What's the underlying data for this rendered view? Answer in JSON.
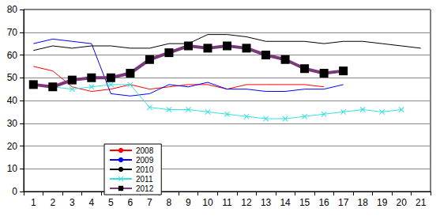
{
  "chart_data": {
    "type": "line",
    "categories": [
      "1",
      "2",
      "3",
      "4",
      "5",
      "6",
      "7",
      "8",
      "9",
      "10",
      "11",
      "12",
      "13",
      "14",
      "15",
      "16",
      "17",
      "18",
      "19",
      "20",
      "21"
    ],
    "ylim": [
      0,
      80
    ],
    "yticks": [
      0,
      10,
      20,
      30,
      40,
      50,
      60,
      70,
      80
    ],
    "grid": true,
    "legend": "lower left",
    "series": [
      {
        "name": "2008",
        "color": "#ff0000",
        "marker": "none",
        "line_style": "thin",
        "values": [
          55,
          53,
          46,
          44,
          45,
          47,
          45,
          46,
          47,
          47,
          45,
          47,
          47,
          47,
          47,
          46,
          null,
          null,
          null,
          null,
          null
        ]
      },
      {
        "name": "2009",
        "color": "#0000ff",
        "marker": "none",
        "line_style": "thin",
        "values": [
          65,
          67,
          66,
          65,
          43,
          42,
          43,
          47,
          46,
          48,
          45,
          45,
          44,
          44,
          45,
          45,
          47,
          null,
          null,
          null,
          null
        ]
      },
      {
        "name": "2010",
        "color": "#000000",
        "marker": "none",
        "line_style": "thin",
        "values": [
          62,
          64,
          63,
          64,
          64,
          63,
          63,
          65,
          65,
          69,
          69,
          68,
          66,
          66,
          66,
          65,
          66,
          66,
          65,
          64,
          63
        ]
      },
      {
        "name": "2011",
        "color": "#33e0e0",
        "marker": "x",
        "line_style": "thin",
        "values": [
          47,
          46,
          45,
          46,
          47,
          47,
          37,
          36,
          36,
          35,
          34,
          33,
          32,
          32,
          33,
          34,
          35,
          36,
          35,
          36,
          null
        ]
      },
      {
        "name": "2012",
        "color": "#7a3a7a",
        "marker": "square",
        "line_style": "thick",
        "values": [
          47,
          46,
          49,
          50,
          50,
          52,
          58,
          61,
          64,
          63,
          64,
          63,
          60,
          58,
          54,
          52,
          53,
          null,
          null,
          null,
          null
        ]
      }
    ]
  }
}
